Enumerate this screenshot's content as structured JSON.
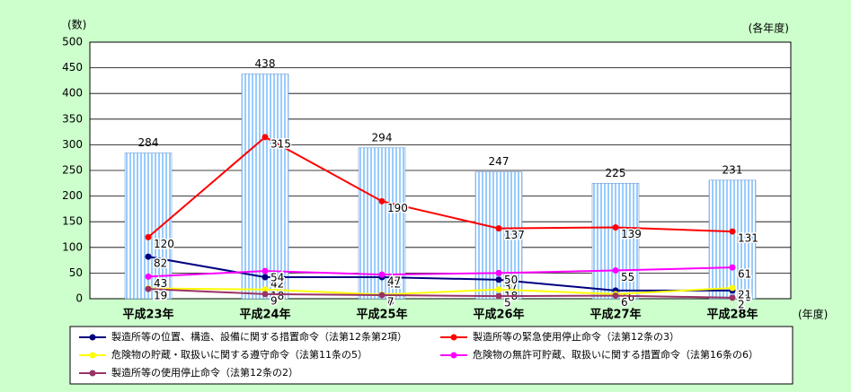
{
  "chart_data": {
    "type": "bar-line",
    "y_unit_label": "(数)",
    "period_note": "(各年度)",
    "x_unit_label": "(年度)",
    "categories": [
      "平成23年",
      "平成24年",
      "平成25年",
      "平成26年",
      "平成27年",
      "平成28年"
    ],
    "bars": {
      "color": "#99ccff",
      "values": [
        284,
        438,
        294,
        247,
        225,
        231
      ]
    },
    "series": [
      {
        "name": "製造所等の位置、構造、設備に関する措置命令（法第12条第2項）",
        "color": "#000080",
        "values": [
          82,
          42,
          42,
          37,
          16,
          16
        ]
      },
      {
        "name": "製造所等の緊急使用停止命令（法第12条の3）",
        "color": "#ff0000",
        "values": [
          120,
          315,
          190,
          137,
          139,
          131
        ]
      },
      {
        "name": "危険物の貯蔵・取扱いに関する遵守命令（法第11条の5）",
        "color": "#ffff00",
        "values": [
          20,
          18,
          8,
          18,
          9,
          21
        ]
      },
      {
        "name": "危険物の無許可貯蔵、取扱いに関する措置命令（法第16条の6）",
        "color": "#ff00ff",
        "values": [
          43,
          54,
          47,
          50,
          55,
          61
        ]
      },
      {
        "name": "製造所等の使用停止命令（法第12条の2）",
        "color": "#993366",
        "values": [
          19,
          9,
          7,
          5,
          6,
          2
        ]
      }
    ],
    "ylim": [
      0,
      500
    ],
    "yticks": [
      0,
      50,
      100,
      150,
      200,
      250,
      300,
      350,
      400,
      450,
      500
    ],
    "grid": true
  }
}
